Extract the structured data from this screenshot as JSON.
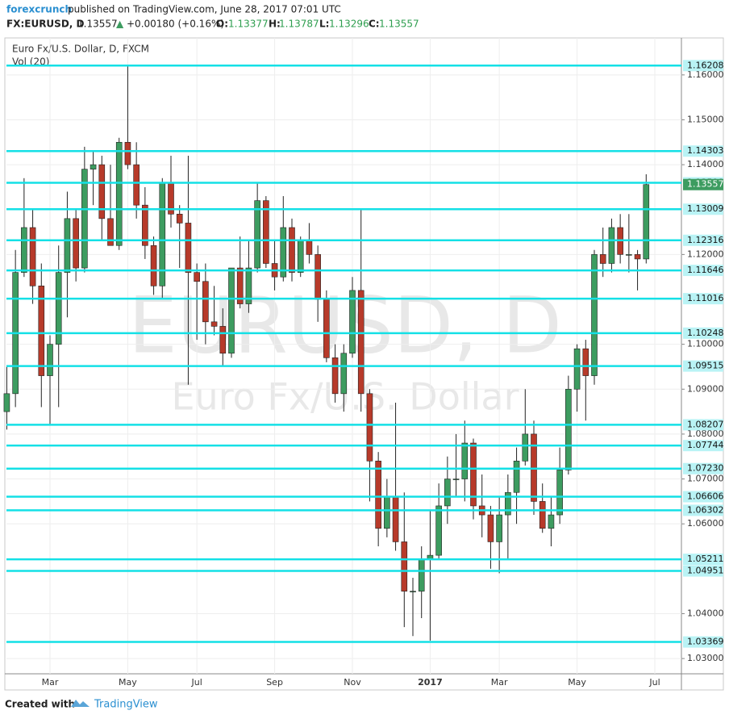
{
  "header": {
    "user": "forexcrunch",
    "published": "published on TradingView.com, June 28, 2017 07:01 UTC",
    "symbol": "FX:EURUSD, D",
    "price": "1.13557",
    "change": "+0.00180 (+0.16%)",
    "open_label": "O:",
    "open": "1.13377",
    "high_label": "H:",
    "high": "1.13787",
    "low_label": "L:",
    "low": "1.13296",
    "close_label": "C:",
    "close": "1.13557"
  },
  "chart_data": {
    "type": "candlestick",
    "title": "Euro Fx/U.S. Dollar, D, FXCM",
    "indicator": "Vol (20)",
    "watermark": "EURUSD, D",
    "watermark_subtitle": "Euro Fx/U.S. Dollar",
    "categories": [
      null,
      null,
      null,
      null,
      null,
      "Mar",
      null,
      null,
      null,
      null,
      null,
      null,
      null,
      null,
      "May",
      null,
      null,
      null,
      null,
      null,
      null,
      null,
      "Jul",
      null,
      null,
      null,
      null,
      null,
      null,
      null,
      null,
      "Sep",
      null,
      null,
      null,
      null,
      null,
      null,
      null,
      null,
      "Nov",
      null,
      null,
      null,
      null,
      null,
      null,
      null,
      null,
      "2017",
      null,
      null,
      null,
      null,
      null,
      null,
      null,
      "Mar",
      null,
      null,
      null,
      null,
      null,
      null,
      null,
      null,
      "May",
      null,
      null,
      null,
      null,
      null,
      null,
      null,
      null,
      "Jul"
    ],
    "open": [
      1.085,
      1.089,
      1.116,
      1.126,
      1.113,
      1.093,
      1.1,
      1.116,
      1.128,
      1.117,
      1.139,
      1.14,
      1.128,
      1.122,
      1.145,
      1.14,
      1.131,
      1.122,
      1.113,
      1.136,
      1.129,
      1.127,
      1.116,
      1.114,
      1.105,
      1.104,
      1.098,
      1.117,
      1.109,
      1.117,
      1.132,
      1.118,
      1.115,
      1.126,
      1.116,
      1.123,
      1.12,
      1.11,
      1.097,
      1.089,
      1.098,
      1.112,
      1.089,
      1.074,
      1.059,
      1.066,
      1.056,
      1.045,
      1.045,
      1.052,
      1.053,
      1.064,
      1.07,
      1.07,
      1.078,
      1.064,
      1.062,
      1.056,
      1.062,
      1.067,
      1.074,
      1.08,
      1.065,
      1.059,
      1.062,
      1.072,
      1.09,
      1.099,
      1.093,
      1.12,
      1.118,
      1.126,
      1.12,
      1.12,
      1.119,
      null
    ],
    "high": [
      1.095,
      1.121,
      1.137,
      1.13,
      1.118,
      1.102,
      1.122,
      1.134,
      1.13,
      1.144,
      1.143,
      1.142,
      1.14,
      1.146,
      1.162,
      1.145,
      1.135,
      1.124,
      1.137,
      1.142,
      1.131,
      1.142,
      1.118,
      1.118,
      1.113,
      1.108,
      1.117,
      1.124,
      1.123,
      1.136,
      1.133,
      1.123,
      1.133,
      1.128,
      1.124,
      1.127,
      1.122,
      1.112,
      1.1,
      1.1,
      1.115,
      1.13,
      1.09,
      1.076,
      1.07,
      1.087,
      1.067,
      1.048,
      1.055,
      1.063,
      1.069,
      1.075,
      1.08,
      1.083,
      1.079,
      1.071,
      1.064,
      1.066,
      1.071,
      1.077,
      1.09,
      1.083,
      1.069,
      1.066,
      1.077,
      1.093,
      1.1,
      1.101,
      1.121,
      1.126,
      1.128,
      1.129,
      1.129,
      1.121,
      1.13787,
      null
    ],
    "low": [
      1.081,
      1.086,
      1.115,
      1.109,
      1.086,
      1.082,
      1.086,
      1.106,
      1.114,
      1.116,
      1.131,
      1.123,
      1.122,
      1.121,
      1.139,
      1.128,
      1.119,
      1.111,
      1.11,
      1.126,
      1.117,
      1.091,
      1.101,
      1.1,
      1.102,
      1.095,
      1.097,
      1.108,
      1.107,
      1.116,
      1.117,
      1.112,
      1.114,
      1.114,
      1.115,
      1.118,
      1.105,
      1.096,
      1.087,
      1.085,
      1.097,
      1.085,
      1.065,
      1.055,
      1.057,
      1.054,
      1.037,
      1.035,
      1.039,
      1.034,
      1.052,
      1.06,
      1.066,
      1.065,
      1.061,
      1.057,
      1.05,
      1.049,
      1.052,
      1.06,
      1.073,
      1.062,
      1.058,
      1.055,
      1.06,
      1.071,
      1.085,
      1.083,
      1.091,
      1.115,
      1.116,
      1.118,
      1.116,
      1.112,
      1.118,
      null
    ],
    "close": [
      1.089,
      1.116,
      1.126,
      1.113,
      1.093,
      1.1,
      1.116,
      1.128,
      1.117,
      1.139,
      1.14,
      1.128,
      1.122,
      1.145,
      1.14,
      1.131,
      1.122,
      1.113,
      1.136,
      1.129,
      1.127,
      1.116,
      1.114,
      1.105,
      1.104,
      1.098,
      1.117,
      1.109,
      1.117,
      1.132,
      1.118,
      1.115,
      1.126,
      1.116,
      1.123,
      1.12,
      1.11,
      1.097,
      1.089,
      1.098,
      1.112,
      1.089,
      1.074,
      1.059,
      1.066,
      1.056,
      1.045,
      1.045,
      1.052,
      1.053,
      1.064,
      1.07,
      1.07,
      1.078,
      1.064,
      1.062,
      1.056,
      1.062,
      1.067,
      1.074,
      1.08,
      1.065,
      1.059,
      1.062,
      1.072,
      1.09,
      1.099,
      1.093,
      1.12,
      1.118,
      1.126,
      1.12,
      1.12,
      1.119,
      1.13557,
      null
    ],
    "up_color": "#3d9c60",
    "down_color": "#b73a2a",
    "wick_color": "#222222",
    "ylim": [
      1.0266,
      1.1668
    ],
    "yticks": [
      {
        "value": 1.16,
        "label": "1.16000"
      },
      {
        "value": 1.15,
        "label": "1.15000"
      },
      {
        "value": 1.14,
        "label": "1.14000"
      },
      {
        "value": 1.12,
        "label": "1.12000"
      },
      {
        "value": 1.1,
        "label": "1.10000"
      },
      {
        "value": 1.09,
        "label": "1.09000"
      },
      {
        "value": 1.08,
        "label": "1.08000"
      },
      {
        "value": 1.07,
        "label": "1.07000"
      },
      {
        "value": 1.06,
        "label": "1.06000"
      },
      {
        "value": 1.04,
        "label": "1.04000"
      },
      {
        "value": 1.03,
        "label": "1.03000"
      }
    ],
    "grid": true,
    "levels": [
      1.16208,
      1.14303,
      1.13598,
      1.13009,
      1.12316,
      1.11646,
      1.11016,
      1.10248,
      1.09515,
      1.08207,
      1.07744,
      {
        "value": 1.0723,
        "label": "1.07230"
      },
      1.06606,
      1.06302,
      1.05211,
      1.04951,
      1.03369
    ],
    "level_color": "#14e0e6",
    "last_price": 1.13557,
    "last_price_color": "#3d9c60"
  },
  "footer": {
    "created": "Created with",
    "brand": "TradingView"
  }
}
